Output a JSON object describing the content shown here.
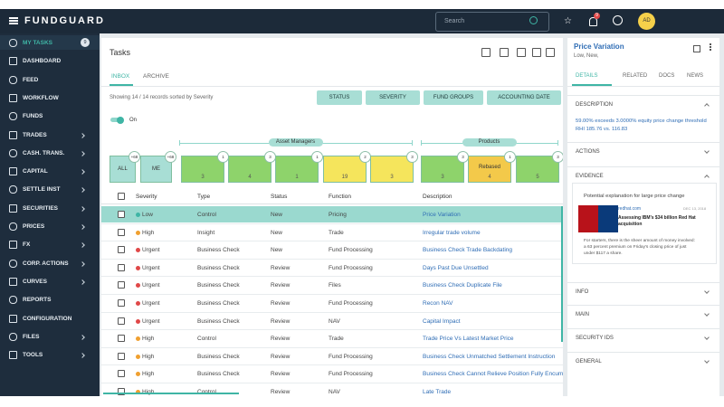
{
  "header": {
    "logo": "FUNDGUARD",
    "search_placeholder": "Search",
    "notification_count": "9",
    "avatar": "AD"
  },
  "sidebar": {
    "items": [
      {
        "label": "MY TASKS",
        "badge": "9",
        "expandable": false
      },
      {
        "label": "DASHBOARD",
        "expandable": false
      },
      {
        "label": "FEED",
        "expandable": false
      },
      {
        "label": "WORKFLOW",
        "expandable": false
      },
      {
        "label": "FUNDS",
        "expandable": false
      },
      {
        "label": "TRADES",
        "expandable": true
      },
      {
        "label": "CASH. TRANS.",
        "expandable": true
      },
      {
        "label": "CAPITAL",
        "expandable": true
      },
      {
        "label": "SETTLE INST",
        "expandable": true
      },
      {
        "label": "SECURITIES",
        "expandable": true
      },
      {
        "label": "PRICES",
        "expandable": true
      },
      {
        "label": "FX",
        "expandable": true
      },
      {
        "label": "CORP. ACTIONS",
        "expandable": true
      },
      {
        "label": "CURVES",
        "expandable": true
      },
      {
        "label": "REPORTS",
        "expandable": false
      },
      {
        "label": "CONFIGURATION",
        "expandable": false
      },
      {
        "label": "FILES",
        "expandable": true
      },
      {
        "label": "TOOLS",
        "expandable": true
      }
    ]
  },
  "tasks": {
    "title": "Tasks",
    "tabs": [
      "INBOX",
      "ARCHIVE"
    ],
    "summary": "Showing 14 / 14 records sorted by Severity",
    "filters": [
      "STATUS",
      "SEVERITY",
      "FUND GROUPS",
      "ACCOUNTING DATE"
    ],
    "toggle": "On",
    "groups": [
      "Asset Managers",
      "Products"
    ],
    "tiles": [
      {
        "label": "ALL",
        "badge": "+68",
        "color": "#a8ded5"
      },
      {
        "label": "ME",
        "badge": "+68",
        "color": "#a8ded5"
      },
      {
        "count": "3",
        "badge": "1",
        "color": "#8ed36b"
      },
      {
        "count": "4",
        "badge": "3",
        "color": "#8ed36b"
      },
      {
        "count": "1",
        "badge": "1",
        "color": "#8ed36b"
      },
      {
        "count": "19",
        "badge": "2",
        "color": "#f5e55c"
      },
      {
        "count": "3",
        "badge": "3",
        "color": "#f5e55c"
      },
      {
        "count": "3",
        "badge": "3",
        "color": "#8ed36b"
      },
      {
        "label": "Rebased",
        "count": "4",
        "badge": "1",
        "color": "#f3c94a"
      },
      {
        "count": "5",
        "badge": "3",
        "color": "#8ed36b"
      }
    ],
    "table": {
      "columns": [
        "Severity",
        "Type",
        "Status",
        "Function",
        "Description"
      ],
      "selected_row": 0,
      "rows": [
        {
          "dot": "#3fb5a5",
          "cells": [
            "Low",
            "Control",
            "New",
            "Pricing",
            "Price Variation"
          ]
        },
        {
          "dot": "#f0a030",
          "cells": [
            "High",
            "Insight",
            "New",
            "Trade",
            "Irregular trade volume"
          ]
        },
        {
          "dot": "#e04848",
          "cells": [
            "Urgent",
            "Business Check",
            "New",
            "Fund Processing",
            "Business Check Trade Backdating"
          ]
        },
        {
          "dot": "#e04848",
          "cells": [
            "Urgent",
            "Business Check",
            "Review",
            "Fund Processing",
            "Days Past Due Unsettled"
          ]
        },
        {
          "dot": "#e04848",
          "cells": [
            "Urgent",
            "Business Check",
            "Review",
            "Files",
            "Business Check Duplicate File"
          ]
        },
        {
          "dot": "#e04848",
          "cells": [
            "Urgent",
            "Business Check",
            "Review",
            "Fund Processing",
            "Recon NAV"
          ]
        },
        {
          "dot": "#e04848",
          "cells": [
            "Urgent",
            "Business Check",
            "Review",
            "NAV",
            "Capital Impact"
          ]
        },
        {
          "dot": "#f0a030",
          "cells": [
            "High",
            "Control",
            "Review",
            "Trade",
            "Trade Price Vs Latest Market Price"
          ]
        },
        {
          "dot": "#f0a030",
          "cells": [
            "High",
            "Business Check",
            "Review",
            "Fund Processing",
            "Business Check Unmatched Settlement Instruction"
          ]
        },
        {
          "dot": "#f0a030",
          "cells": [
            "High",
            "Business Check",
            "Review",
            "Fund Processing",
            "Business Check Cannot Relieve Position Fully Encumbe"
          ]
        },
        {
          "dot": "#f0a030",
          "cells": [
            "High",
            "Control",
            "Review",
            "NAV",
            "Late Trade"
          ]
        }
      ]
    }
  },
  "detail": {
    "title": "Price Variation",
    "subtitle": "Low, New,",
    "tabs": [
      "DETAILS",
      "RELATED",
      "DOCS",
      "NEWS"
    ],
    "description": {
      "title": "DESCRIPTION",
      "lines": [
        "59.00% exceeds 3.0000% equity price change threshold",
        "RHI 185.76 vs. 116.83"
      ]
    },
    "actions": "ACTIONS",
    "evidence": {
      "title": "EVIDENCE",
      "caption": "Potential explanation for large price change",
      "source": "redhat.com",
      "date": "DEC 13, 2018",
      "headline": [
        "Assessing IBM's $34 billion Red Hat",
        "acquisition"
      ],
      "body": [
        "For starters, there is the sheer amount of money involved:",
        "a 63 percent premium on Friday's closing price of just",
        "under $117 a share."
      ]
    },
    "sections": [
      "INFO",
      "MAIN",
      "SECURITY IDS",
      "GENERAL"
    ]
  }
}
